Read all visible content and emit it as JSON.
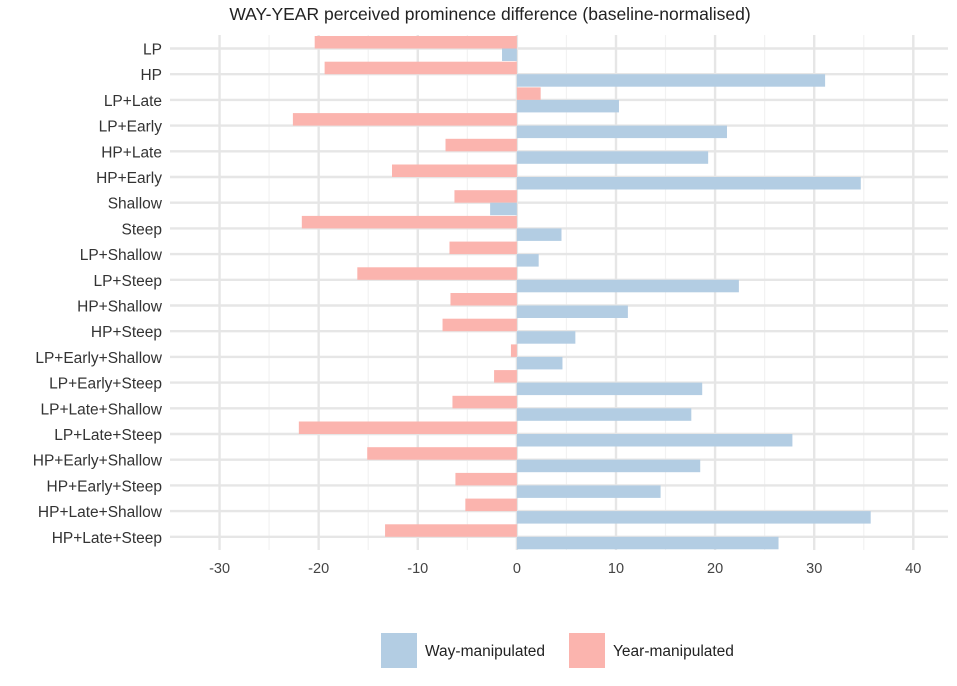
{
  "chart_data": {
    "type": "bar",
    "orientation": "horizontal",
    "title": "WAY-YEAR perceived prominence difference (baseline-normalised)",
    "xlabel": "",
    "ylabel": "",
    "xlim": [
      -35,
      43.5
    ],
    "xticks": [
      -30,
      -20,
      -10,
      0,
      10,
      20,
      30,
      40
    ],
    "xtick_labels": [
      "-30",
      "-20",
      "-10",
      "0",
      "10",
      "20",
      "30",
      "40"
    ],
    "grid": true,
    "legend_position": "bottom",
    "categories": [
      "LP",
      "HP",
      "LP+Late",
      "LP+Early",
      "HP+Late",
      "HP+Early",
      "Shallow",
      "Steep",
      "LP+Shallow",
      "LP+Steep",
      "HP+Shallow",
      "HP+Steep",
      "LP+Early+Shallow",
      "LP+Early+Steep",
      "LP+Late+Shallow",
      "LP+Late+Steep",
      "HP+Early+Shallow",
      "HP+Early+Steep",
      "HP+Late+Shallow",
      "HP+Late+Steep"
    ],
    "series": [
      {
        "name": "Way-manipulated",
        "color": "#b3cde3",
        "values": [
          -1.5,
          31.1,
          10.3,
          21.2,
          19.3,
          34.7,
          -2.7,
          4.5,
          2.2,
          22.4,
          11.2,
          5.9,
          4.6,
          18.7,
          17.6,
          27.8,
          18.5,
          14.5,
          35.7,
          26.4
        ]
      },
      {
        "name": "Year-manipulated",
        "color": "#fbb4ae",
        "values": [
          -20.4,
          -19.4,
          2.4,
          -22.6,
          -7.2,
          -12.6,
          -6.3,
          -21.7,
          -6.8,
          -16.1,
          -6.7,
          -7.5,
          -0.6,
          -2.3,
          -6.5,
          -22.0,
          -15.1,
          -6.2,
          -5.2,
          -13.3
        ]
      }
    ]
  }
}
